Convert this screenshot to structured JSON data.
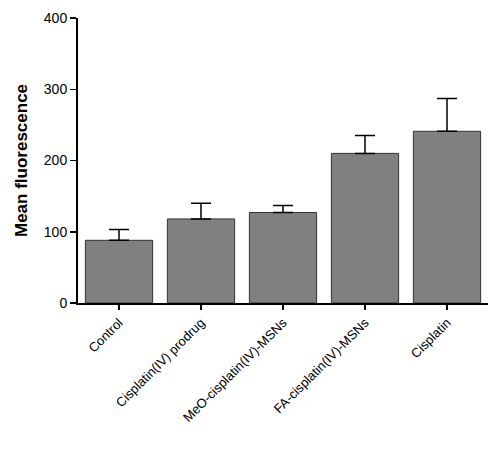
{
  "chart_data": {
    "type": "bar",
    "y_label": "Mean fluorescence",
    "categories": [
      "Control",
      "Cisplatin(IV) prodrug",
      "MeO-cisplatin(IV)-MSNs",
      "FA-cisplatin(IV)-MSNs",
      "Cisplatin"
    ],
    "values": [
      88,
      118,
      127,
      210,
      241
    ],
    "errors": [
      15,
      22,
      10,
      25,
      46
    ],
    "color": "#808080",
    "ylim": [
      0,
      400
    ],
    "yticks": [
      0,
      100,
      200,
      300,
      400
    ],
    "grid": false
  }
}
